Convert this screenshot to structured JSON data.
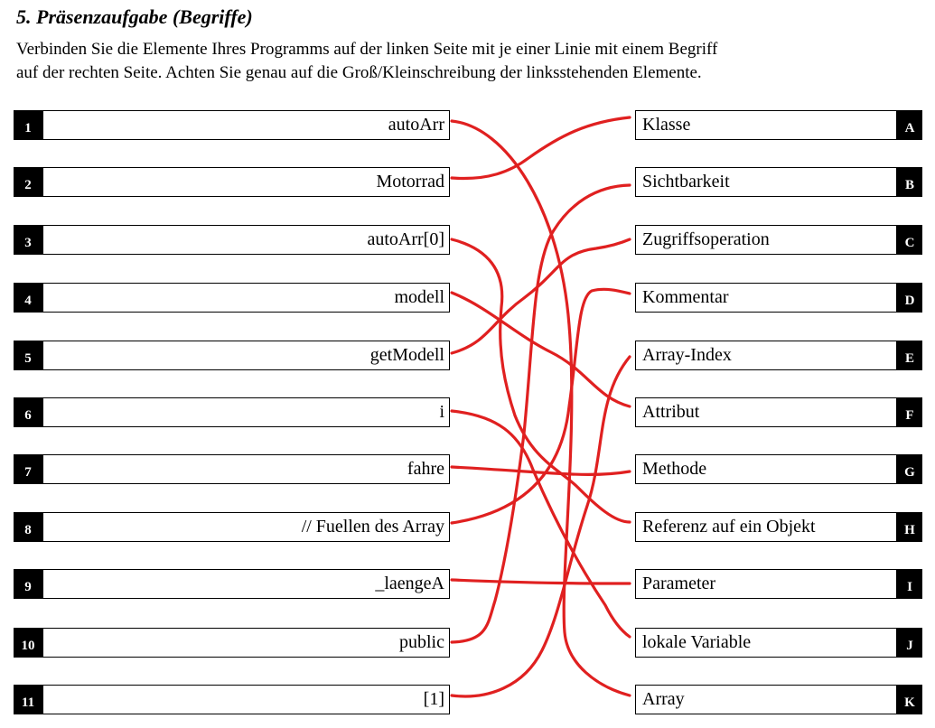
{
  "task": {
    "title": "5.  Präsenzaufgabe (Begriffe)",
    "instruction_line1": "Verbinden Sie die Elemente Ihres Programms auf der linken Seite mit je einer Linie mit einem Begriff",
    "instruction_line2": "auf der rechten Seite. Achten Sie genau auf die Groß/Kleinschreibung der linksstehenden Elemente."
  },
  "left_items": [
    {
      "num": "1",
      "text": "autoArr"
    },
    {
      "num": "2",
      "text": "Motorrad"
    },
    {
      "num": "3",
      "text": "autoArr[0]"
    },
    {
      "num": "4",
      "text": "modell"
    },
    {
      "num": "5",
      "text": "getModell"
    },
    {
      "num": "6",
      "text": "i"
    },
    {
      "num": "7",
      "text": "fahre"
    },
    {
      "num": "8",
      "text": "// Fuellen des Array"
    },
    {
      "num": "9",
      "text": "_laengeA"
    },
    {
      "num": "10",
      "text": "public"
    },
    {
      "num": "11",
      "text": "[1]"
    }
  ],
  "right_items": [
    {
      "letter": "A",
      "text": "Klasse"
    },
    {
      "letter": "B",
      "text": "Sichtbarkeit"
    },
    {
      "letter": "C",
      "text": "Zugriffsoperation"
    },
    {
      "letter": "D",
      "text": "Kommentar"
    },
    {
      "letter": "E",
      "text": "Array-Index"
    },
    {
      "letter": "F",
      "text": "Attribut"
    },
    {
      "letter": "G",
      "text": "Methode"
    },
    {
      "letter": "H",
      "text": "Referenz auf ein Objekt"
    },
    {
      "letter": "I",
      "text": "Parameter"
    },
    {
      "letter": "J",
      "text": "lokale Variable"
    },
    {
      "letter": "K",
      "text": "Array"
    }
  ],
  "connections": [
    {
      "from": "1",
      "to": "K"
    },
    {
      "from": "2",
      "to": "A"
    },
    {
      "from": "3",
      "to": "H"
    },
    {
      "from": "4",
      "to": "F"
    },
    {
      "from": "5",
      "to": "C"
    },
    {
      "from": "6",
      "to": "J"
    },
    {
      "from": "7",
      "to": "G"
    },
    {
      "from": "8",
      "to": "D"
    },
    {
      "from": "9",
      "to": "I"
    },
    {
      "from": "10",
      "to": "B"
    },
    {
      "from": "11",
      "to": "E"
    }
  ],
  "line_color": "#e02020"
}
